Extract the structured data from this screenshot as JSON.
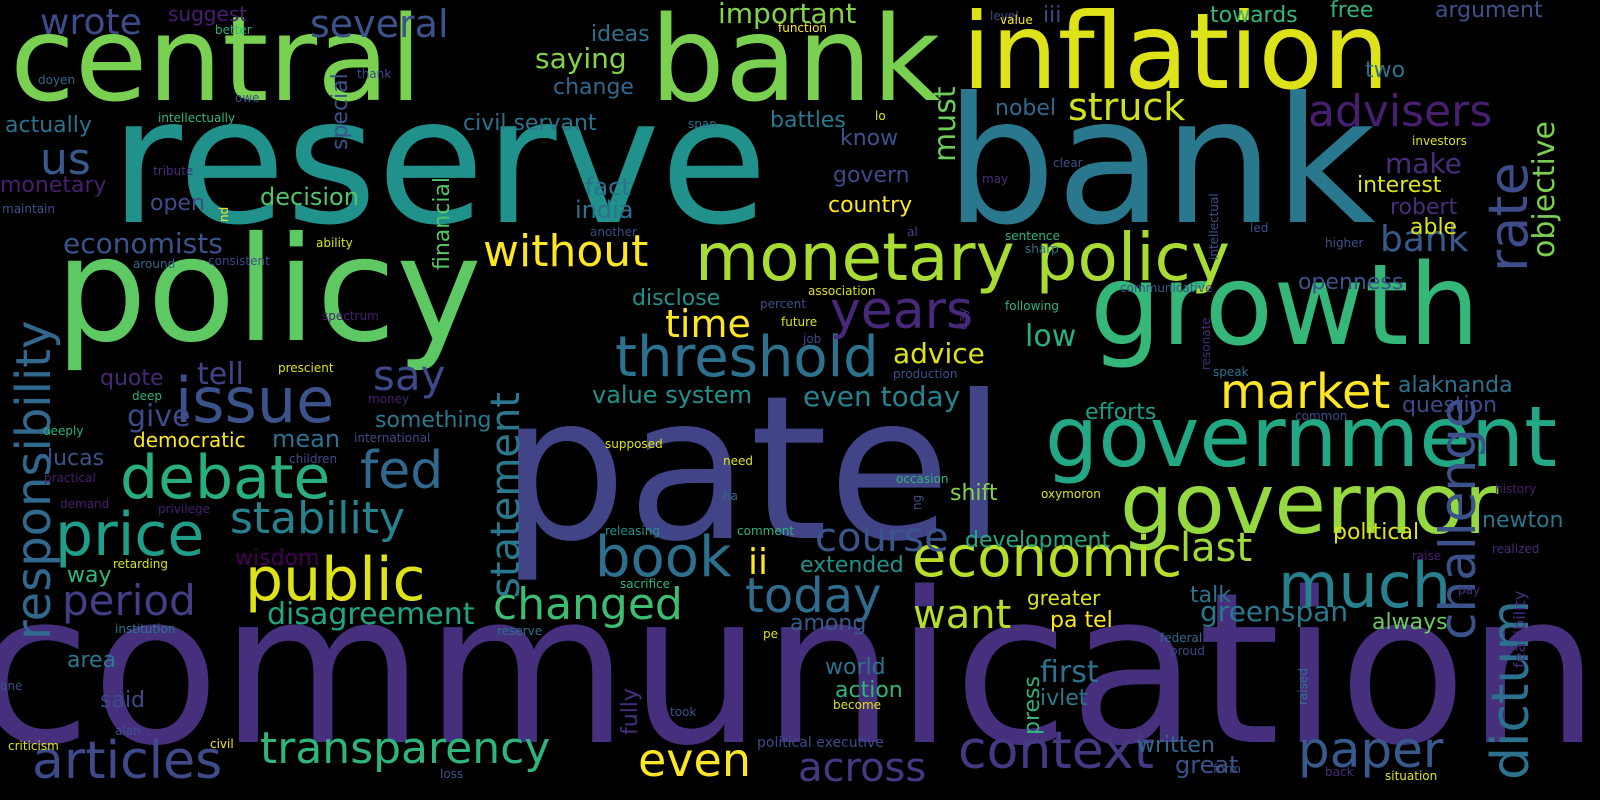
{
  "palette": {
    "background": "#000000",
    "colormap": "viridis"
  },
  "words": [
    {
      "text": "communication",
      "color": "#46307e"
    },
    {
      "text": "patel",
      "color": "#414487"
    },
    {
      "text": "reserve",
      "color": "#21918c"
    },
    {
      "text": "bank",
      "color": "#2a788e"
    },
    {
      "text": "policy",
      "color": "#5ec962"
    },
    {
      "text": "central",
      "color": "#7ad151"
    },
    {
      "text": "bank",
      "color": "#7ad151"
    },
    {
      "text": "inflation",
      "color": "#dde318"
    },
    {
      "text": "growth",
      "color": "#35b779"
    },
    {
      "text": "government",
      "color": "#22a884"
    },
    {
      "text": "governor",
      "color": "#95d840"
    },
    {
      "text": "monetary policy",
      "color": "#a8db34"
    },
    {
      "text": "public",
      "color": "#dde318"
    },
    {
      "text": "threshold",
      "color": "#2c728e"
    },
    {
      "text": "economic",
      "color": "#b8de29"
    },
    {
      "text": "issue",
      "color": "#3b528b"
    },
    {
      "text": "debate",
      "color": "#29af7f"
    },
    {
      "text": "price",
      "color": "#1f9e89"
    },
    {
      "text": "stability",
      "color": "#26828e"
    },
    {
      "text": "fed",
      "color": "#31688e"
    },
    {
      "text": "book",
      "color": "#2d708e"
    },
    {
      "text": "much",
      "color": "#27808e"
    },
    {
      "text": "paper",
      "color": "#38598c"
    },
    {
      "text": "context",
      "color": "#443a83"
    },
    {
      "text": "transparency",
      "color": "#2fb47c"
    },
    {
      "text": "articles",
      "color": "#3e4a89"
    },
    {
      "text": "market",
      "color": "#fde725"
    },
    {
      "text": "changed",
      "color": "#3dbc74"
    },
    {
      "text": "today",
      "color": "#2f6c8e"
    },
    {
      "text": "without",
      "color": "#fde725"
    },
    {
      "text": "years",
      "color": "#482878"
    },
    {
      "text": "rate",
      "color": "#3e4c8a"
    },
    {
      "text": "advisers",
      "color": "#481f70"
    },
    {
      "text": "struck",
      "color": "#d0e11c"
    },
    {
      "text": "responsibility",
      "color": "#31688e"
    },
    {
      "text": "statement",
      "color": "#2a788e"
    },
    {
      "text": "challenge",
      "color": "#3b528b"
    },
    {
      "text": "dictum",
      "color": "#2c728e"
    },
    {
      "text": "objective",
      "color": "#7ad151"
    },
    {
      "text": "period",
      "color": "#433e85"
    },
    {
      "text": "disagreement",
      "color": "#21a685"
    },
    {
      "text": "course",
      "color": "#3a548c"
    },
    {
      "text": "even",
      "color": "#fde725"
    },
    {
      "text": "across",
      "color": "#443983"
    },
    {
      "text": "want",
      "color": "#b5de2b"
    },
    {
      "text": "last",
      "color": "#a2da37"
    },
    {
      "text": "time",
      "color": "#fde725"
    },
    {
      "text": "say",
      "color": "#3e4989"
    },
    {
      "text": "economists",
      "color": "#3b528b"
    },
    {
      "text": "us",
      "color": "#38598c"
    },
    {
      "text": "wrote",
      "color": "#3e4a89"
    },
    {
      "text": "several",
      "color": "#3b528b"
    },
    {
      "text": "important",
      "color": "#84d44b"
    },
    {
      "text": "saying",
      "color": "#84d44b"
    },
    {
      "text": "greenspan",
      "color": "#2a788e"
    },
    {
      "text": "even today",
      "color": "#26828e"
    },
    {
      "text": "value system",
      "color": "#21918c"
    },
    {
      "text": "advice",
      "color": "#dde318"
    },
    {
      "text": "low",
      "color": "#29af7f"
    },
    {
      "text": "must",
      "color": "#6ccd5a"
    },
    {
      "text": "bank",
      "color": "#38598c"
    },
    {
      "text": "ii",
      "color": "#fde725"
    },
    {
      "text": "first",
      "color": "#2c728e"
    },
    {
      "text": "written",
      "color": "#31688e"
    },
    {
      "text": "great",
      "color": "#3b528b"
    },
    {
      "text": "alaknanda",
      "color": "#2c728e"
    },
    {
      "text": "question",
      "color": "#3e4989"
    },
    {
      "text": "openness",
      "color": "#3b528b"
    },
    {
      "text": "political",
      "color": "#dde318"
    },
    {
      "text": "newton",
      "color": "#2a788e"
    },
    {
      "text": "make",
      "color": "#472d7b"
    },
    {
      "text": "interest",
      "color": "#dde318"
    },
    {
      "text": "robert",
      "color": "#472d7b"
    },
    {
      "text": "able",
      "color": "#dde318"
    },
    {
      "text": "tell",
      "color": "#414487"
    },
    {
      "text": "give",
      "color": "#3e4989"
    },
    {
      "text": "mean",
      "color": "#2c728e"
    },
    {
      "text": "democratic",
      "color": "#fde725"
    },
    {
      "text": "lucas",
      "color": "#3b528b"
    },
    {
      "text": "quote",
      "color": "#482878"
    },
    {
      "text": "something",
      "color": "#2a788e"
    },
    {
      "text": "decision",
      "color": "#52c569"
    },
    {
      "text": "fact",
      "color": "#2c728e"
    },
    {
      "text": "india",
      "color": "#2c728e"
    },
    {
      "text": "open",
      "color": "#3e4a89"
    },
    {
      "text": "monetary",
      "color": "#481f70"
    },
    {
      "text": "actually",
      "color": "#2c728e"
    },
    {
      "text": "civil servant",
      "color": "#2c728e"
    },
    {
      "text": "battles",
      "color": "#2a788e"
    },
    {
      "text": "ideas",
      "color": "#2c728e"
    },
    {
      "text": "change",
      "color": "#31688e"
    },
    {
      "text": "know",
      "color": "#3b528b"
    },
    {
      "text": "govern",
      "color": "#3e4989"
    },
    {
      "text": "country",
      "color": "#fde725"
    },
    {
      "text": "nobel",
      "color": "#31688e"
    },
    {
      "text": "financial",
      "color": "#52c569"
    },
    {
      "text": "special",
      "color": "#3b528b"
    },
    {
      "text": "disclose",
      "color": "#21918c"
    },
    {
      "text": "extended",
      "color": "#21918c"
    },
    {
      "text": "development",
      "color": "#22a884"
    },
    {
      "text": "shift",
      "color": "#84d44b"
    },
    {
      "text": "pa tel",
      "color": "#fde725"
    },
    {
      "text": "greater",
      "color": "#dde318"
    },
    {
      "text": "talk",
      "color": "#2c728e"
    },
    {
      "text": "always",
      "color": "#6ccd5a"
    },
    {
      "text": "ivlet",
      "color": "#2a788e"
    },
    {
      "text": "world",
      "color": "#2c728e"
    },
    {
      "text": "action",
      "color": "#2fb47c"
    },
    {
      "text": "among",
      "color": "#38598c"
    },
    {
      "text": "press",
      "color": "#2fb47c"
    },
    {
      "text": "efforts",
      "color": "#1f9e89"
    },
    {
      "text": "way",
      "color": "#35b779"
    },
    {
      "text": "area",
      "color": "#2a788e"
    },
    {
      "text": "said",
      "color": "#3e4a89"
    },
    {
      "text": "wisdom",
      "color": "#440154"
    },
    {
      "text": "iii",
      "color": "#3e4a89"
    },
    {
      "text": "towards",
      "color": "#35b779"
    },
    {
      "text": "free",
      "color": "#2fb47c"
    },
    {
      "text": "argument",
      "color": "#3b528b"
    },
    {
      "text": "two",
      "color": "#2c728e"
    },
    {
      "text": "suggest",
      "color": "#481f70"
    },
    {
      "text": "fully",
      "color": "#46307e"
    },
    {
      "text": "feasibility",
      "color": "#472d7b"
    },
    {
      "text": "level",
      "color": "#3e4989"
    },
    {
      "text": "value",
      "color": "#fde725"
    },
    {
      "text": "function",
      "color": "#fde725"
    },
    {
      "text": "better",
      "color": "#2fb47c"
    },
    {
      "text": "doyen",
      "color": "#31688e"
    },
    {
      "text": "thank",
      "color": "#3e4a89"
    },
    {
      "text": "owe",
      "color": "#3e4989"
    },
    {
      "text": "intellectually",
      "color": "#35b779"
    },
    {
      "text": "tribute",
      "color": "#472d7b"
    },
    {
      "text": "maintain",
      "color": "#3b528b"
    },
    {
      "text": "nd",
      "color": "#fde725"
    },
    {
      "text": "ability",
      "color": "#dde318"
    },
    {
      "text": "around",
      "color": "#31688e"
    },
    {
      "text": "consistent",
      "color": "#3e4989"
    },
    {
      "text": "another",
      "color": "#3e4989"
    },
    {
      "text": "al",
      "color": "#3e4a89"
    },
    {
      "text": "spectrum",
      "color": "#481f70"
    },
    {
      "text": "prescient",
      "color": "#dde318"
    },
    {
      "text": "association",
      "color": "#dde318"
    },
    {
      "text": "percent",
      "color": "#3b528b"
    },
    {
      "text": "future",
      "color": "#dde318"
    },
    {
      "text": "job",
      "color": "#3e4989"
    },
    {
      "text": "production",
      "color": "#3b528b"
    },
    {
      "text": "day",
      "color": "#472d7b"
    },
    {
      "text": "following",
      "color": "#2fb47c"
    },
    {
      "text": "sentence",
      "color": "#2fb47c"
    },
    {
      "text": "sharp",
      "color": "#2c728e"
    },
    {
      "text": "communicative",
      "color": "#3b528b"
    },
    {
      "text": "intellectual",
      "color": "#3b528b"
    },
    {
      "text": "led",
      "color": "#3b528b"
    },
    {
      "text": "higher",
      "color": "#3b528b"
    },
    {
      "text": "investors",
      "color": "#dde318"
    },
    {
      "text": "clear",
      "color": "#3b528b"
    },
    {
      "text": "lo",
      "color": "#dde318"
    },
    {
      "text": "span",
      "color": "#2c728e"
    },
    {
      "text": "may",
      "color": "#472d7b"
    },
    {
      "text": "resonate",
      "color": "#472d7b"
    },
    {
      "text": "speak",
      "color": "#2c728e"
    },
    {
      "text": "common",
      "color": "#3e4a89"
    },
    {
      "text": "deep",
      "color": "#2fb47c"
    },
    {
      "text": "money",
      "color": "#481f70"
    },
    {
      "text": "deeply",
      "color": "#2fb47c"
    },
    {
      "text": "international",
      "color": "#3e4989"
    },
    {
      "text": "children",
      "color": "#3e4a89"
    },
    {
      "text": "practical",
      "color": "#481f70"
    },
    {
      "text": "demand",
      "color": "#481f70"
    },
    {
      "text": "privilege",
      "color": "#481f70"
    },
    {
      "text": "supposed",
      "color": "#dde318"
    },
    {
      "text": "need",
      "color": "#dde318"
    },
    {
      "text": "occasion",
      "color": "#2fb47c"
    },
    {
      "text": "ng",
      "color": "#3b528b"
    },
    {
      "text": "oxymoron",
      "color": "#dde318"
    },
    {
      "text": "ha",
      "color": "#31688e"
    },
    {
      "text": "history",
      "color": "#481f70"
    },
    {
      "text": "releasing",
      "color": "#21918c"
    },
    {
      "text": "comment",
      "color": "#2fb47c"
    },
    {
      "text": "sacrifice",
      "color": "#2fb47c"
    },
    {
      "text": "retarding",
      "color": "#dde318"
    },
    {
      "text": "realized",
      "color": "#472d7b"
    },
    {
      "text": "raise",
      "color": "#481f70"
    },
    {
      "text": "pay",
      "color": "#472d7b"
    },
    {
      "text": "institution",
      "color": "#2a788e"
    },
    {
      "text": "reserve",
      "color": "#2c728e"
    },
    {
      "text": "pe",
      "color": "#dde318"
    },
    {
      "text": "federal",
      "color": "#31688e"
    },
    {
      "text": "proud",
      "color": "#3e4989"
    },
    {
      "text": "raised",
      "color": "#2c728e"
    },
    {
      "text": "one",
      "color": "#3b528b"
    },
    {
      "text": "took",
      "color": "#3b528b"
    },
    {
      "text": "become",
      "color": "#dde318"
    },
    {
      "text": "alan",
      "color": "#3b528b"
    },
    {
      "text": "political executive",
      "color": "#3e4a89"
    },
    {
      "text": "criticism",
      "color": "#dde318"
    },
    {
      "text": "civil",
      "color": "#fde725"
    },
    {
      "text": "loss",
      "color": "#3b528b"
    },
    {
      "text": "form",
      "color": "#3b528b"
    },
    {
      "text": "back",
      "color": "#472d7b"
    },
    {
      "text": "situation",
      "color": "#dde318"
    }
  ]
}
